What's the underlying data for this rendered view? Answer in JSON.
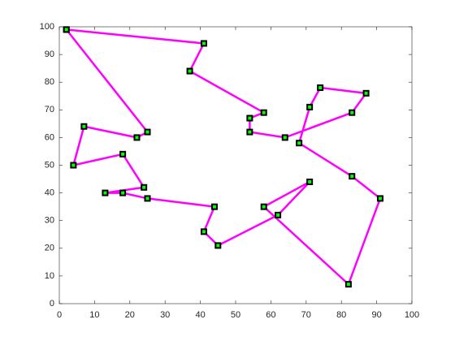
{
  "chart_data": {
    "type": "line",
    "x": [
      2,
      41,
      37,
      58,
      54,
      54,
      64,
      83,
      87,
      74,
      71,
      68,
      83,
      91,
      82,
      58,
      71,
      62,
      45,
      41,
      44,
      25,
      18,
      13,
      24,
      18,
      4,
      7,
      22,
      25,
      2
    ],
    "values": [
      99,
      94,
      84,
      69,
      67,
      62,
      60,
      69,
      76,
      78,
      71,
      58,
      46,
      38,
      7,
      35,
      44,
      32,
      21,
      26,
      35,
      38,
      40,
      40,
      42,
      54,
      50,
      64,
      60,
      62,
      99
    ],
    "color": "#ff00ff",
    "marker_edge": "#000000",
    "marker_face": "#00ff00",
    "xlim": [
      0,
      100
    ],
    "ylim": [
      0,
      100
    ],
    "xticks": [
      0,
      10,
      20,
      30,
      40,
      50,
      60,
      70,
      80,
      90,
      100
    ],
    "yticks": [
      0,
      10,
      20,
      30,
      40,
      50,
      60,
      70,
      80,
      90,
      100
    ],
    "grid": false
  }
}
